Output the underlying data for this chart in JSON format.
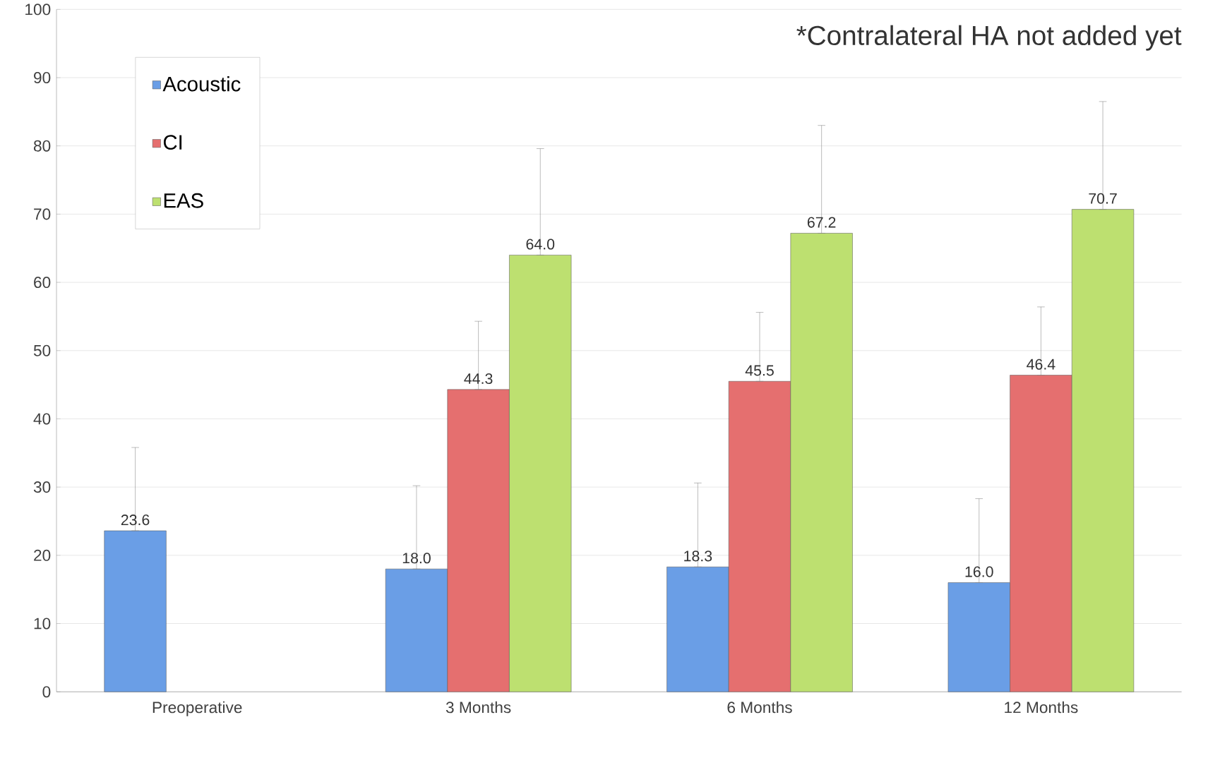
{
  "chart_data": {
    "type": "bar",
    "categories": [
      "Preoperative",
      "3 Months",
      "6 Months",
      "12 Months"
    ],
    "series": [
      {
        "name": "Acoustic",
        "color": "#6a9ee6",
        "values": [
          23.6,
          18.0,
          18.3,
          16.0
        ],
        "value_labels": [
          "23.6",
          "18.0",
          "18.3",
          "16.0"
        ],
        "errors": [
          [
            23.6,
            35.8
          ],
          [
            18.0,
            30.2
          ],
          [
            18.3,
            30.6
          ],
          [
            16.0,
            28.3
          ]
        ]
      },
      {
        "name": "CI",
        "color": "#e56f6f",
        "values": [
          null,
          44.3,
          45.5,
          46.4
        ],
        "value_labels": [
          null,
          "44.3",
          "45.5",
          "46.4"
        ],
        "errors": [
          null,
          [
            44.3,
            54.3
          ],
          [
            45.5,
            55.6
          ],
          [
            46.4,
            56.4
          ]
        ]
      },
      {
        "name": "EAS",
        "color": "#bde070",
        "values": [
          null,
          64.0,
          67.2,
          70.7
        ],
        "value_labels": [
          null,
          "64.0",
          "67.2",
          "70.7"
        ],
        "errors": [
          null,
          [
            64.0,
            79.6
          ],
          [
            67.2,
            83.0
          ],
          [
            70.7,
            86.5
          ]
        ]
      }
    ],
    "ylim": [
      0,
      100
    ],
    "yticks": [
      0,
      10,
      20,
      30,
      40,
      50,
      60,
      70,
      80,
      90,
      100
    ],
    "grid": "y",
    "legend": "top left",
    "annotations": [
      "*Contralateral HA not added yet"
    ]
  }
}
